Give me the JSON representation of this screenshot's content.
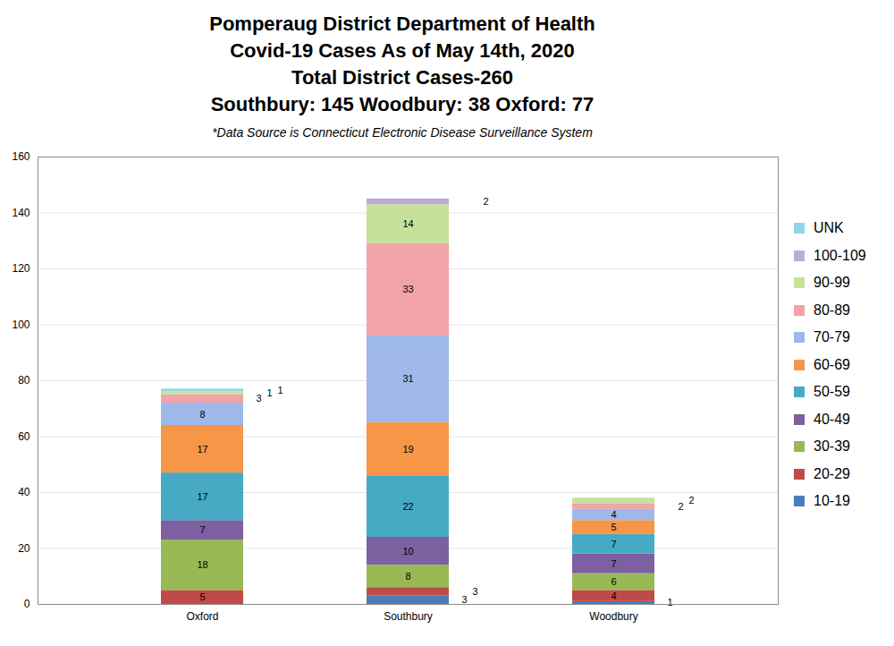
{
  "chart_data": {
    "type": "bar",
    "title": [
      "Pomperaug District Department of Health",
      "Covid-19 Cases As of May 14th, 2020",
      "Total District Cases-260",
      "Southbury: 145 Woodbury: 38 Oxford: 77"
    ],
    "subtitle": "*Data Source is Connecticut Electronic Disease Surveillance System",
    "categories": [
      "Oxford",
      "Southbury",
      "Woodbury"
    ],
    "series": [
      {
        "name": "10-19",
        "color": "#4a7ebb",
        "values": [
          null,
          3,
          1
        ]
      },
      {
        "name": "20-29",
        "color": "#be4b48",
        "values": [
          5,
          3,
          4
        ]
      },
      {
        "name": "30-39",
        "color": "#98b954",
        "values": [
          18,
          8,
          6
        ]
      },
      {
        "name": "40-49",
        "color": "#7d60a0",
        "values": [
          7,
          10,
          7
        ]
      },
      {
        "name": "50-59",
        "color": "#46aac5",
        "values": [
          17,
          22,
          7
        ]
      },
      {
        "name": "60-69",
        "color": "#f79646",
        "values": [
          17,
          19,
          5
        ]
      },
      {
        "name": "70-79",
        "color": "#9fb8ea",
        "values": [
          8,
          31,
          4
        ]
      },
      {
        "name": "80-89",
        "color": "#f2a3a7",
        "values": [
          3,
          33,
          2
        ]
      },
      {
        "name": "90-99",
        "color": "#c6e29a",
        "values": [
          1,
          14,
          2
        ]
      },
      {
        "name": "100-109",
        "color": "#c0aadc",
        "values": [
          null,
          2,
          null
        ]
      },
      {
        "name": "UNK",
        "color": "#8fd6e6",
        "values": [
          1,
          null,
          null
        ]
      }
    ],
    "stacked": true,
    "data_labels": true,
    "ylim": [
      0,
      160
    ],
    "yticks": [
      0,
      20,
      40,
      60,
      80,
      100,
      120,
      140,
      160
    ],
    "grid": true,
    "legend": "right"
  }
}
